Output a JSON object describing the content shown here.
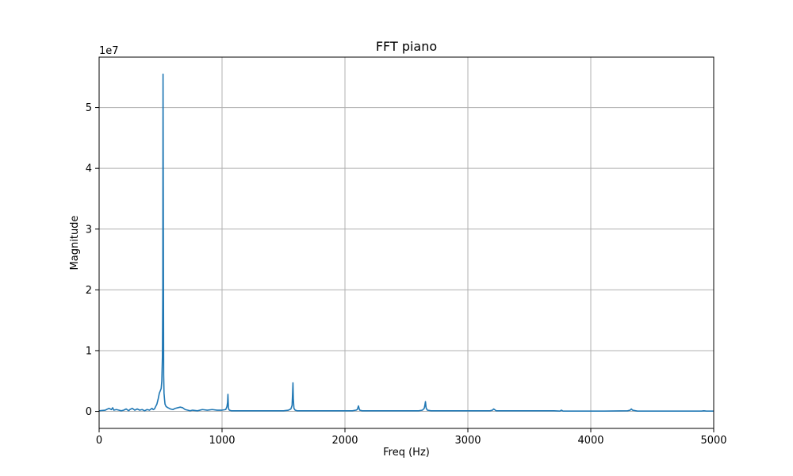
{
  "chart_data": {
    "type": "line",
    "title": "FFT piano",
    "xlabel": "Freq (Hz)",
    "ylabel": "Magnitude",
    "y_offset_text": "1e7",
    "xlim": [
      0,
      5000
    ],
    "ylim": [
      -0.28,
      5.83
    ],
    "y_scale_note": "values in units of 1e7",
    "x_ticks": [
      0,
      1000,
      2000,
      3000,
      4000,
      5000
    ],
    "y_ticks": [
      0,
      1,
      2,
      3,
      4,
      5
    ],
    "grid": true,
    "colors": {
      "line": "#1f77b4",
      "grid": "#b0b0b0",
      "axes": "#000000"
    },
    "series": [
      {
        "x": [
          0,
          50,
          80,
          100,
          110,
          120,
          140,
          160,
          180,
          200,
          220,
          240,
          250,
          270,
          290,
          310,
          330,
          350,
          370,
          390,
          410,
          430,
          440,
          450,
          460,
          470,
          480,
          490,
          500,
          505,
          510,
          515,
          518,
          520,
          523,
          525,
          528,
          532,
          536,
          545,
          560,
          580,
          600,
          620,
          640,
          660,
          680,
          700,
          720,
          740,
          760,
          800,
          840,
          880,
          920,
          960,
          1000,
          1030,
          1040,
          1045,
          1048,
          1052,
          1056,
          1060,
          1075,
          1100,
          1150,
          1200,
          1250,
          1300,
          1350,
          1400,
          1450,
          1500,
          1540,
          1560,
          1570,
          1574,
          1577,
          1580,
          1585,
          1595,
          1610,
          1650,
          1700,
          1800,
          1900,
          2000,
          2060,
          2090,
          2100,
          2105,
          2110,
          2115,
          2120,
          2140,
          2200,
          2300,
          2400,
          2500,
          2600,
          2630,
          2645,
          2650,
          2655,
          2660,
          2670,
          2700,
          2800,
          2900,
          3000,
          3100,
          3180,
          3200,
          3210,
          3230,
          3300,
          3500,
          3700,
          3750,
          3760,
          3775,
          3900,
          4100,
          4300,
          4320,
          4330,
          4340,
          4380,
          4500,
          4700,
          4900,
          4920,
          4940,
          5000
        ],
        "y": [
          0.01,
          0.02,
          0.05,
          0.03,
          0.06,
          0.02,
          0.03,
          0.02,
          0.01,
          0.02,
          0.04,
          0.01,
          0.03,
          0.05,
          0.02,
          0.04,
          0.02,
          0.03,
          0.01,
          0.03,
          0.02,
          0.05,
          0.03,
          0.04,
          0.08,
          0.12,
          0.2,
          0.3,
          0.35,
          0.38,
          0.5,
          0.9,
          2.0,
          5.55,
          2.5,
          0.6,
          0.3,
          0.2,
          0.12,
          0.08,
          0.06,
          0.04,
          0.03,
          0.05,
          0.06,
          0.07,
          0.06,
          0.03,
          0.02,
          0.01,
          0.02,
          0.01,
          0.03,
          0.02,
          0.03,
          0.02,
          0.02,
          0.03,
          0.08,
          0.15,
          0.28,
          0.06,
          0.03,
          0.02,
          0.01,
          0.01,
          0.01,
          0.01,
          0.01,
          0.01,
          0.01,
          0.01,
          0.01,
          0.01,
          0.02,
          0.04,
          0.1,
          0.3,
          0.47,
          0.2,
          0.05,
          0.02,
          0.01,
          0.01,
          0.01,
          0.01,
          0.01,
          0.01,
          0.01,
          0.02,
          0.03,
          0.06,
          0.09,
          0.05,
          0.02,
          0.01,
          0.01,
          0.01,
          0.01,
          0.01,
          0.01,
          0.02,
          0.05,
          0.1,
          0.16,
          0.06,
          0.02,
          0.01,
          0.01,
          0.01,
          0.01,
          0.01,
          0.01,
          0.02,
          0.04,
          0.01,
          0.01,
          0.01,
          0.01,
          0.005,
          0.02,
          0.005,
          0.005,
          0.005,
          0.01,
          0.02,
          0.04,
          0.02,
          0.005,
          0.005,
          0.005,
          0.005,
          0.01,
          0.005,
          0.005
        ]
      }
    ]
  }
}
